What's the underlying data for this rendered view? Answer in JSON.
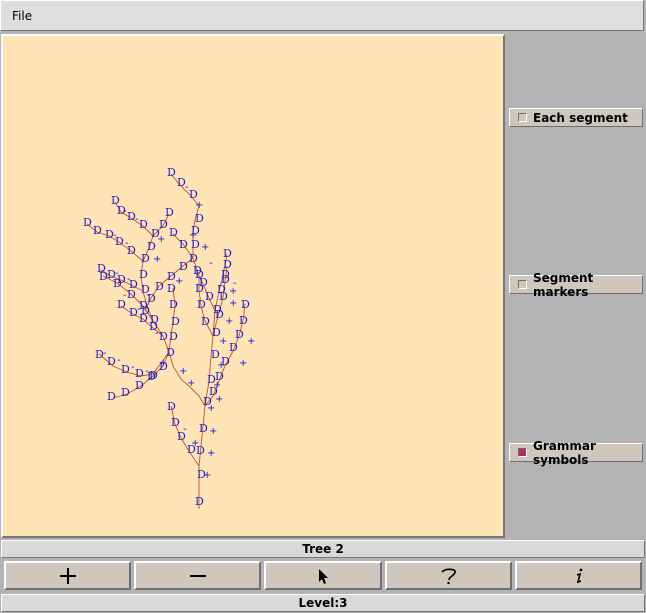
{
  "menubar": {
    "file_label": "File"
  },
  "side_panel": {
    "each_segment": {
      "label": "Each segment",
      "checked": false
    },
    "segment_markers": {
      "label": "Segment markers",
      "checked": false
    },
    "grammar_symbols": {
      "label": "Grammar symbols",
      "checked": true
    }
  },
  "tree_label": "Tree 2",
  "toolbar": {
    "buttons": [
      {
        "name": "add-button",
        "icon": "plus-icon"
      },
      {
        "name": "remove-button",
        "icon": "minus-icon"
      },
      {
        "name": "select-button",
        "icon": "arrow-cursor-icon"
      },
      {
        "name": "help-button",
        "icon": "question-icon"
      },
      {
        "name": "info-button",
        "icon": "info-icon"
      }
    ]
  },
  "level_label": "Level:3",
  "colors": {
    "canvas_bg": "#ffe5b6",
    "branch": "#c05030",
    "symbol": "#1c1cd2",
    "checked": "#b03060"
  }
}
